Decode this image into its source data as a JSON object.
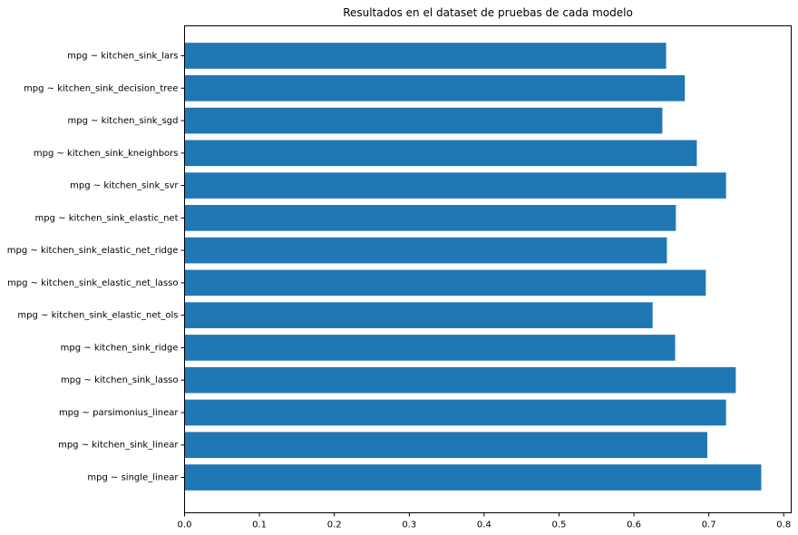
{
  "chart_data": {
    "type": "bar",
    "orientation": "horizontal",
    "title": "Resultados en el dataset de pruebas de cada modelo",
    "xlabel": "",
    "ylabel": "",
    "xlim": [
      0,
      0.81
    ],
    "xticks": [
      "0.0",
      "0.1",
      "0.2",
      "0.3",
      "0.4",
      "0.5",
      "0.6",
      "0.7",
      "0.8"
    ],
    "bar_color": "#1f77b4",
    "grid": false,
    "categories": [
      "mpg ~ single_linear",
      "mpg ~ kitchen_sink_linear",
      "mpg ~ parsimonius_linear",
      "mpg ~ kitchen_sink_lasso",
      "mpg ~ kitchen_sink_ridge",
      "mpg ~ kitchen_sink_elastic_net_ols",
      "mpg ~ kitchen_sink_elastic_net_lasso",
      "mpg ~ kitchen_sink_elastic_net_ridge",
      "mpg ~ kitchen_sink_elastic_net",
      "mpg ~ kitchen_sink_svr",
      "mpg ~ kitchen_sink_kneighbors",
      "mpg ~ kitchen_sink_sgd",
      "mpg ~ kitchen_sink_decision_tree",
      "mpg ~ kitchen_sink_lars"
    ],
    "values": [
      0.77,
      0.698,
      0.723,
      0.736,
      0.655,
      0.625,
      0.696,
      0.644,
      0.656,
      0.723,
      0.684,
      0.638,
      0.668,
      0.643
    ]
  }
}
